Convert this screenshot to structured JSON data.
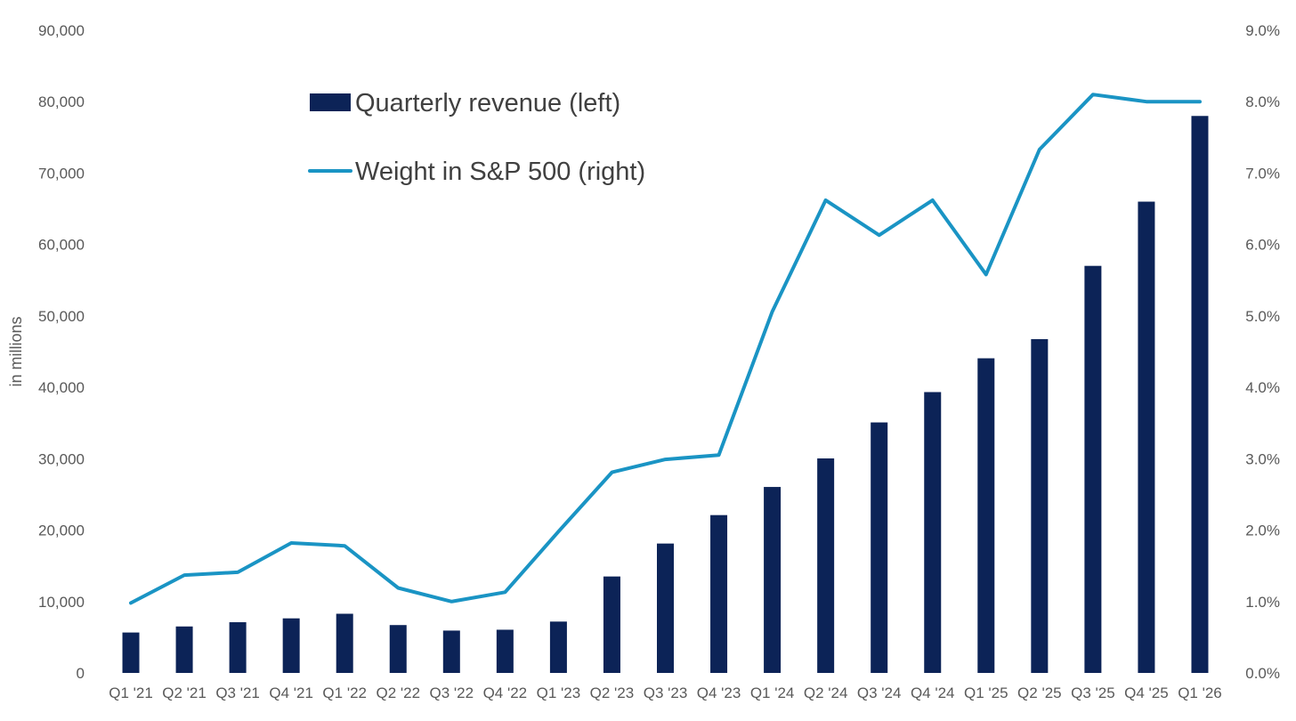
{
  "chart_data": {
    "type": "bar+line",
    "title": "",
    "categories": [
      "Q1 '21",
      "Q2 '21",
      "Q3 '21",
      "Q4 '21",
      "Q1 '22",
      "Q2 '22",
      "Q3 '22",
      "Q4 '22",
      "Q1 '23",
      "Q2 '23",
      "Q3 '23",
      "Q4 '23",
      "Q1 '24",
      "Q2 '24",
      "Q3 '24",
      "Q4 '24",
      "Q1 '25",
      "Q2 '25",
      "Q3 '25",
      "Q4 '25",
      "Q1 '26"
    ],
    "series": [
      {
        "name": "Quarterly revenue (left)",
        "kind": "bar",
        "axis": "left",
        "values": [
          5661,
          6507,
          7103,
          7643,
          8288,
          6704,
          5931,
          6051,
          7192,
          13507,
          18120,
          22103,
          26044,
          30040,
          35082,
          39331,
          44062,
          46743,
          57006,
          66000,
          78000
        ]
      },
      {
        "name": "Weight in S&P 500 (right)",
        "kind": "line",
        "axis": "right",
        "values": [
          0.98,
          1.37,
          1.41,
          1.82,
          1.78,
          1.19,
          1.0,
          1.13,
          1.98,
          2.81,
          2.99,
          3.05,
          5.06,
          6.62,
          6.13,
          6.62,
          5.58,
          7.33,
          8.1,
          8.0,
          8.0
        ]
      }
    ],
    "y_left": {
      "label": "in millions",
      "ylim": [
        0,
        90000
      ],
      "ticks": [
        "0",
        "10,000",
        "20,000",
        "30,000",
        "40,000",
        "50,000",
        "60,000",
        "70,000",
        "80,000",
        "90,000"
      ]
    },
    "y_right": {
      "label": "",
      "ylim": [
        0,
        9
      ],
      "ticks": [
        "0.0%",
        "1.0%",
        "2.0%",
        "3.0%",
        "4.0%",
        "5.0%",
        "6.0%",
        "7.0%",
        "8.0%",
        "9.0%"
      ]
    },
    "grid": false,
    "legend": {
      "position": "top-left",
      "entries": [
        "Quarterly revenue (left)",
        "Weight in S&P 500 (right)"
      ]
    },
    "colors": {
      "bar": "#0c2357",
      "line": "#1a94c4",
      "text": "#595959"
    }
  }
}
